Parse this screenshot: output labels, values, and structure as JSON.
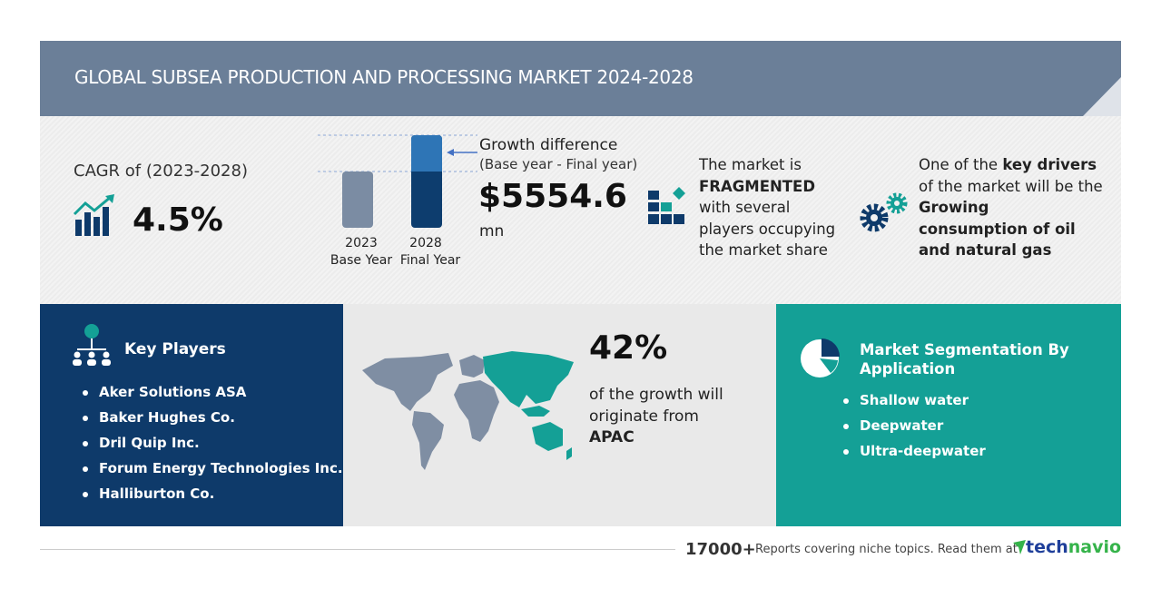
{
  "header": {
    "title": "GLOBAL SUBSEA PRODUCTION AND PROCESSING MARKET 2024-2028"
  },
  "cagr": {
    "label": "CAGR of (2023-2028)",
    "value": "4.5%",
    "icon": "growth-chart-icon"
  },
  "growth": {
    "bars": [
      {
        "year": "2023",
        "label": "Base Year",
        "color": "#7b8ca3"
      },
      {
        "year": "2028",
        "label": "Final Year",
        "color": "#0d3d6e",
        "increment_color": "#2e75b6"
      }
    ],
    "title": "Growth difference",
    "subtitle": "(Base year - Final year)",
    "value": "$5554.6",
    "unit": "mn"
  },
  "market": {
    "line1": "The market is",
    "strong": "FRAGMENTED",
    "line3": "with several",
    "line4": "players occupying",
    "line5": "the market share",
    "icon": "fragmented-blocks-icon"
  },
  "drivers": {
    "pre": "One of the ",
    "strong1": "key drivers",
    "line2": "of the market will be the",
    "strong2": "Growing",
    "strong3": "consumption of oil",
    "strong4": "and natural gas",
    "icon": "gears-icon"
  },
  "key_players": {
    "title": "Key Players",
    "icon": "people-network-icon",
    "items": [
      "Aker Solutions ASA",
      "Baker Hughes Co.",
      "Dril Quip Inc.",
      "Forum Energy Technologies Inc.",
      "Halliburton Co."
    ]
  },
  "region": {
    "percent": "42%",
    "line1": "of the growth will",
    "line2": "originate from",
    "region": "APAC",
    "highlight_color": "#14a096",
    "map_color": "#7f8ea3"
  },
  "segmentation": {
    "title_line1": "Market Segmentation By",
    "title_line2": "Application",
    "icon": "pie-chart-icon",
    "items": [
      "Shallow water",
      "Deepwater",
      "Ultra-deepwater"
    ]
  },
  "footer": {
    "count": "17000+",
    "text": "Reports covering niche topics. Read them at",
    "brand_a": "tech",
    "brand_b": "navio",
    "brand_color_a": "#1f3f9a",
    "brand_color_b": "#35b34a"
  }
}
